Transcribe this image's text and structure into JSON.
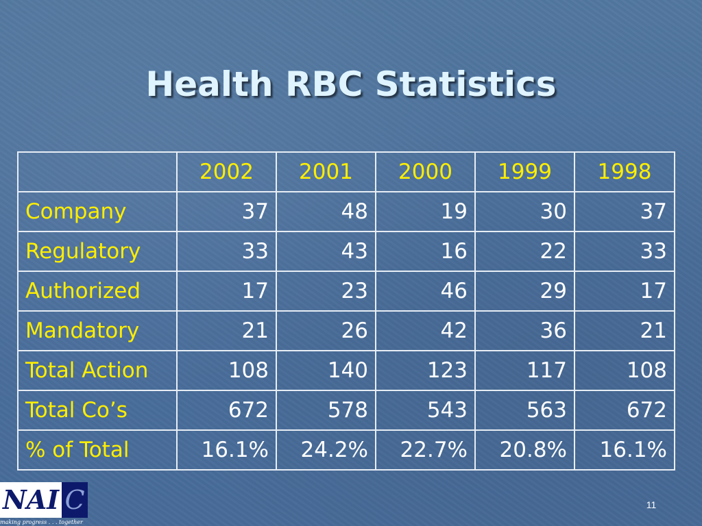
{
  "slide": {
    "title": "Health RBC Statistics",
    "page_number": "11"
  },
  "table": {
    "corner": "",
    "years": [
      "2002",
      "2001",
      "2000",
      "1999",
      "1998"
    ],
    "rows": [
      {
        "label": "Company",
        "values": [
          "37",
          "48",
          "19",
          "30",
          "37"
        ]
      },
      {
        "label": "Regulatory",
        "values": [
          "33",
          "43",
          "16",
          "22",
          "33"
        ]
      },
      {
        "label": "Authorized",
        "values": [
          "17",
          "23",
          "46",
          "29",
          "17"
        ]
      },
      {
        "label": "Mandatory",
        "values": [
          "21",
          "26",
          "42",
          "36",
          "21"
        ]
      },
      {
        "label": "Total Action",
        "values": [
          "108",
          "140",
          "123",
          "117",
          "108"
        ]
      },
      {
        "label": "Total Co’s",
        "values": [
          "672",
          "578",
          "543",
          "563",
          "672"
        ]
      },
      {
        "label": "% of Total",
        "values": [
          "16.1%",
          "24.2%",
          "22.7%",
          "20.8%",
          "16.1%"
        ]
      }
    ]
  },
  "logo": {
    "text_left": "NAI",
    "text_right": "C",
    "tagline": "making progress . . . together"
  },
  "colors": {
    "background": "#4d72a0",
    "title": "#dff4ff",
    "label": "#ffee00",
    "value": "#ffffff",
    "logo_navy": "#0d1a6b"
  }
}
